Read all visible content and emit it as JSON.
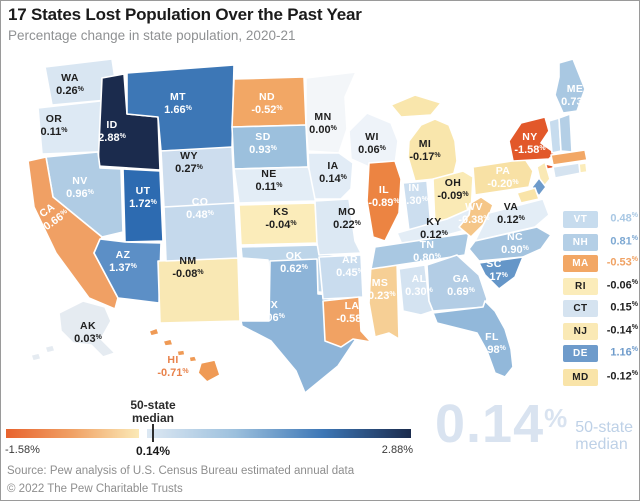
{
  "header": {
    "title": "17 States Lost Population Over the Past Year",
    "subtitle": "Percentage change in state population, 2020-21"
  },
  "chart_data": {
    "type": "heatmap",
    "title": "17 States Lost Population Over the Past Year",
    "subtitle": "Percentage change in state population, 2020-21",
    "unit": "%",
    "range": [
      -1.58,
      2.88
    ],
    "median": 0.14,
    "states": [
      {
        "abbr": "WA",
        "value": "0.26%",
        "color": "#d9e6f2",
        "text": "dark"
      },
      {
        "abbr": "OR",
        "value": "0.11%",
        "color": "#dde9f4",
        "text": "dark"
      },
      {
        "abbr": "ID",
        "value": "2.88%",
        "color": "#1b2b4d",
        "text": "light"
      },
      {
        "abbr": "MT",
        "value": "1.66%",
        "color": "#3d77b6",
        "text": "light"
      },
      {
        "abbr": "WY",
        "value": "0.27%",
        "color": "#cdddee",
        "text": "dark"
      },
      {
        "abbr": "NV",
        "value": "0.96%",
        "color": "#b0cce4",
        "text": "light"
      },
      {
        "abbr": "UT",
        "value": "1.72%",
        "color": "#2d6bb1",
        "text": "light"
      },
      {
        "abbr": "CA",
        "value": "-0.66%",
        "color": "#f0a064",
        "text": "light"
      },
      {
        "abbr": "AZ",
        "value": "1.37%",
        "color": "#5c8fc6",
        "text": "light"
      },
      {
        "abbr": "NM",
        "value": "-0.08%",
        "color": "#f9e8b4",
        "text": "dark"
      },
      {
        "abbr": "CO",
        "value": "0.48%",
        "color": "#c5d9ec",
        "text": "light"
      },
      {
        "abbr": "ND",
        "value": "-0.52%",
        "color": "#f2a765",
        "text": "light"
      },
      {
        "abbr": "SD",
        "value": "0.93%",
        "color": "#9cc0dd",
        "text": "light"
      },
      {
        "abbr": "NE",
        "value": "0.11%",
        "color": "#e3edf6",
        "text": "dark"
      },
      {
        "abbr": "KS",
        "value": "-0.04%",
        "color": "#fbecba",
        "text": "dark"
      },
      {
        "abbr": "OK",
        "value": "0.62%",
        "color": "#bdd5e9",
        "text": "light"
      },
      {
        "abbr": "TX",
        "value": "1.06%",
        "color": "#8db4d8",
        "text": "light"
      },
      {
        "abbr": "MN",
        "value": "0.00%",
        "color": "#f3f6f9",
        "text": "dark"
      },
      {
        "abbr": "IA",
        "value": "0.14%",
        "color": "#e2ecf6",
        "text": "dark"
      },
      {
        "abbr": "MO",
        "value": "0.22%",
        "color": "#dce8f3",
        "text": "dark"
      },
      {
        "abbr": "AR",
        "value": "0.45%",
        "color": "#c9dcee",
        "text": "light"
      },
      {
        "abbr": "LA",
        "value": "-0.58%",
        "color": "#f1a263",
        "text": "light"
      },
      {
        "abbr": "WI",
        "value": "0.06%",
        "color": "#eef3f9",
        "text": "dark"
      },
      {
        "abbr": "IL",
        "value": "-0.89%",
        "color": "#ec8442",
        "text": "light"
      },
      {
        "abbr": "MS",
        "value": "-0.23%",
        "color": "#f6cf95",
        "text": "light"
      },
      {
        "abbr": "MI",
        "value": "-0.17%",
        "color": "#f9e6ac",
        "text": "dark"
      },
      {
        "abbr": "IN",
        "value": "0.30%",
        "color": "#ccdeef",
        "text": "light"
      },
      {
        "abbr": "OH",
        "value": "-0.09%",
        "color": "#faeab5",
        "text": "dark"
      },
      {
        "abbr": "KY",
        "value": "0.12%",
        "color": "#e3edf6",
        "text": "dark"
      },
      {
        "abbr": "TN",
        "value": "0.80%",
        "color": "#a9c8e2",
        "text": "light"
      },
      {
        "abbr": "AL",
        "value": "0.30%",
        "color": "#d4e3f1",
        "text": "light"
      },
      {
        "abbr": "WV",
        "value": "-0.38%",
        "color": "#f5c688",
        "text": "light"
      },
      {
        "abbr": "VA",
        "value": "0.12%",
        "color": "#e3edf6",
        "text": "dark"
      },
      {
        "abbr": "NC",
        "value": "0.90%",
        "color": "#a3c3df",
        "text": "light"
      },
      {
        "abbr": "SC",
        "value": "1.17%",
        "color": "#6596c8",
        "text": "light"
      },
      {
        "abbr": "GA",
        "value": "0.69%",
        "color": "#b3cde5",
        "text": "light"
      },
      {
        "abbr": "FL",
        "value": "0.98%",
        "color": "#92b8da",
        "text": "light"
      },
      {
        "abbr": "PA",
        "value": "-0.20%",
        "color": "#f8e1a5",
        "text": "light"
      },
      {
        "abbr": "NY",
        "value": "-1.58%",
        "color": "#e2582a",
        "text": "light"
      },
      {
        "abbr": "ME",
        "value": "0.73%",
        "color": "#a9c8e2",
        "text": "light"
      },
      {
        "abbr": "AK",
        "value": "0.03%",
        "color": "#e5ebf1",
        "text": "dark"
      },
      {
        "abbr": "HI",
        "value": "-0.71%",
        "color": "#ef9a55",
        "text": "orange"
      }
    ]
  },
  "legend": {
    "items": [
      {
        "abbr": "VT",
        "value": "0.48%",
        "chip": "#c7dcee",
        "chip_text": "#ffffff",
        "value_color": "#a9c8e4"
      },
      {
        "abbr": "NH",
        "value": "0.81%",
        "chip": "#b4cfe6",
        "chip_text": "#ffffff",
        "value_color": "#7ea9d3"
      },
      {
        "abbr": "MA",
        "value": "-0.53%",
        "chip": "#f2a765",
        "chip_text": "#ffffff",
        "value_color": "#f0a264"
      },
      {
        "abbr": "RI",
        "value": "-0.06%",
        "chip": "#fbecba",
        "chip_text": "#1f1f1f",
        "value_color": "#1f1f1f"
      },
      {
        "abbr": "CT",
        "value": "0.15%",
        "chip": "#d5e3f0",
        "chip_text": "#1f1f1f",
        "value_color": "#1f1f1f"
      },
      {
        "abbr": "NJ",
        "value": "-0.14%",
        "chip": "#fae9b5",
        "chip_text": "#1f1f1f",
        "value_color": "#1f1f1f"
      },
      {
        "abbr": "DE",
        "value": "1.16%",
        "chip": "#6e9bcb",
        "chip_text": "#ffffff",
        "value_color": "#6e9bcb"
      },
      {
        "abbr": "MD",
        "value": "-0.12%",
        "chip": "#f9e4a9",
        "chip_text": "#1f1f1f",
        "value_color": "#1f1f1f"
      }
    ]
  },
  "scale": {
    "bar_left_colors": [
      "#e8632e",
      "#f0a165",
      "#fbe9b6"
    ],
    "bar_right_colors": [
      "#dde8f3",
      "#9cc0dd",
      "#3d77b6",
      "#1b2b4d"
    ],
    "min": "-1.58%",
    "median": "0.14%",
    "max": "2.88%",
    "median_line1": "50-state",
    "median_line2": "median"
  },
  "callout": {
    "value": "0.14",
    "percent": "%",
    "line1": "50-state",
    "line2": "median",
    "color": "#d9e3f0"
  },
  "footer": {
    "source": "Source: Pew analysis of U.S. Census Bureau estimated annual data",
    "copyright": "© 2022 The Pew Charitable Trusts"
  }
}
